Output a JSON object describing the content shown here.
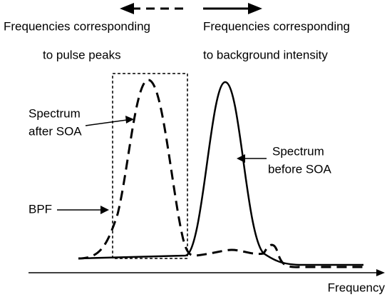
{
  "labels": {
    "left_heading": [
      "Frequencies corresponding",
      "to pulse peaks"
    ],
    "right_heading": [
      "Frequencies corresponding",
      "to background intensity"
    ],
    "after": [
      "Spectrum",
      "after SOA"
    ],
    "before": [
      "Spectrum",
      "before SOA"
    ],
    "bpf": "BPF",
    "axis": "Frequency"
  }
}
